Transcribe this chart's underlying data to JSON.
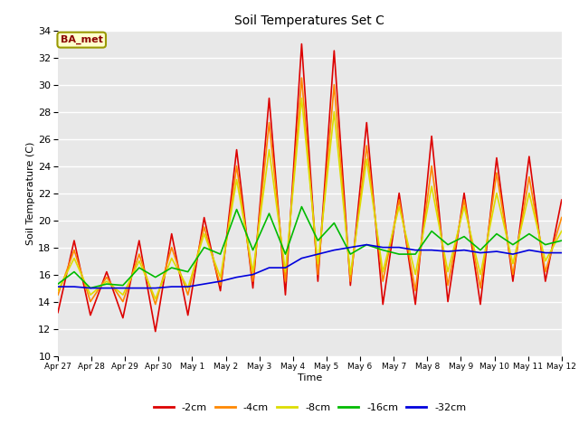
{
  "title": "Soil Temperatures Set C",
  "xlabel": "Time",
  "ylabel": "Soil Temperature (C)",
  "ylim": [
    10,
    34
  ],
  "yticks": [
    10,
    12,
    14,
    16,
    18,
    20,
    22,
    24,
    26,
    28,
    30,
    32,
    34
  ],
  "background_color": "#e8e8e8",
  "legend_label": "BA_met",
  "series_colors": {
    "-2cm": "#dd0000",
    "-4cm": "#ff8800",
    "-8cm": "#dddd00",
    "-16cm": "#00bb00",
    "-32cm": "#0000dd"
  },
  "x_labels": [
    "Apr 27",
    "Apr 28",
    "Apr 29",
    "Apr 30",
    "May 1",
    "May 2",
    "May 3",
    "May 4",
    "May 5",
    "May 6",
    "May 7",
    "May 8",
    "May 9",
    "May 10",
    "May 11",
    "May 12"
  ],
  "data": {
    "-2cm": [
      13.2,
      18.5,
      13.0,
      16.2,
      12.8,
      18.5,
      11.8,
      19.0,
      13.0,
      20.2,
      14.8,
      25.2,
      15.0,
      29.0,
      14.5,
      33.0,
      15.5,
      32.5,
      15.2,
      27.2,
      13.8,
      22.0,
      13.8,
      26.2,
      14.0,
      22.0,
      13.8,
      24.6,
      15.5,
      24.7,
      15.5,
      21.5
    ],
    "-4cm": [
      14.5,
      17.8,
      14.0,
      15.8,
      14.0,
      17.5,
      13.8,
      18.0,
      14.5,
      19.5,
      15.2,
      24.0,
      15.5,
      27.2,
      15.5,
      30.5,
      16.0,
      30.0,
      15.5,
      25.5,
      15.5,
      21.5,
      14.8,
      24.0,
      15.2,
      21.5,
      15.0,
      23.5,
      16.0,
      23.2,
      16.2,
      20.2
    ],
    "-8cm": [
      14.8,
      17.2,
      14.5,
      15.5,
      14.5,
      17.0,
      14.2,
      17.2,
      15.0,
      19.0,
      15.8,
      23.0,
      16.2,
      25.2,
      16.2,
      29.0,
      16.8,
      28.0,
      16.0,
      24.5,
      16.2,
      21.0,
      16.0,
      22.5,
      16.2,
      21.0,
      16.0,
      22.0,
      16.8,
      22.0,
      17.0,
      19.2
    ],
    "-16cm": [
      15.3,
      16.2,
      15.0,
      15.3,
      15.2,
      16.5,
      15.8,
      16.5,
      16.2,
      18.0,
      17.5,
      20.8,
      17.8,
      20.5,
      17.5,
      21.0,
      18.5,
      19.8,
      17.5,
      18.2,
      17.8,
      17.5,
      17.5,
      19.2,
      18.2,
      18.8,
      17.8,
      19.0,
      18.2,
      19.0,
      18.2,
      18.5
    ],
    "-32cm": [
      15.1,
      15.1,
      15.0,
      15.0,
      15.0,
      15.0,
      15.0,
      15.1,
      15.1,
      15.3,
      15.5,
      15.8,
      16.0,
      16.5,
      16.5,
      17.2,
      17.5,
      17.8,
      18.0,
      18.2,
      18.0,
      18.0,
      17.8,
      17.8,
      17.7,
      17.8,
      17.6,
      17.7,
      17.5,
      17.8,
      17.6,
      17.6
    ]
  }
}
